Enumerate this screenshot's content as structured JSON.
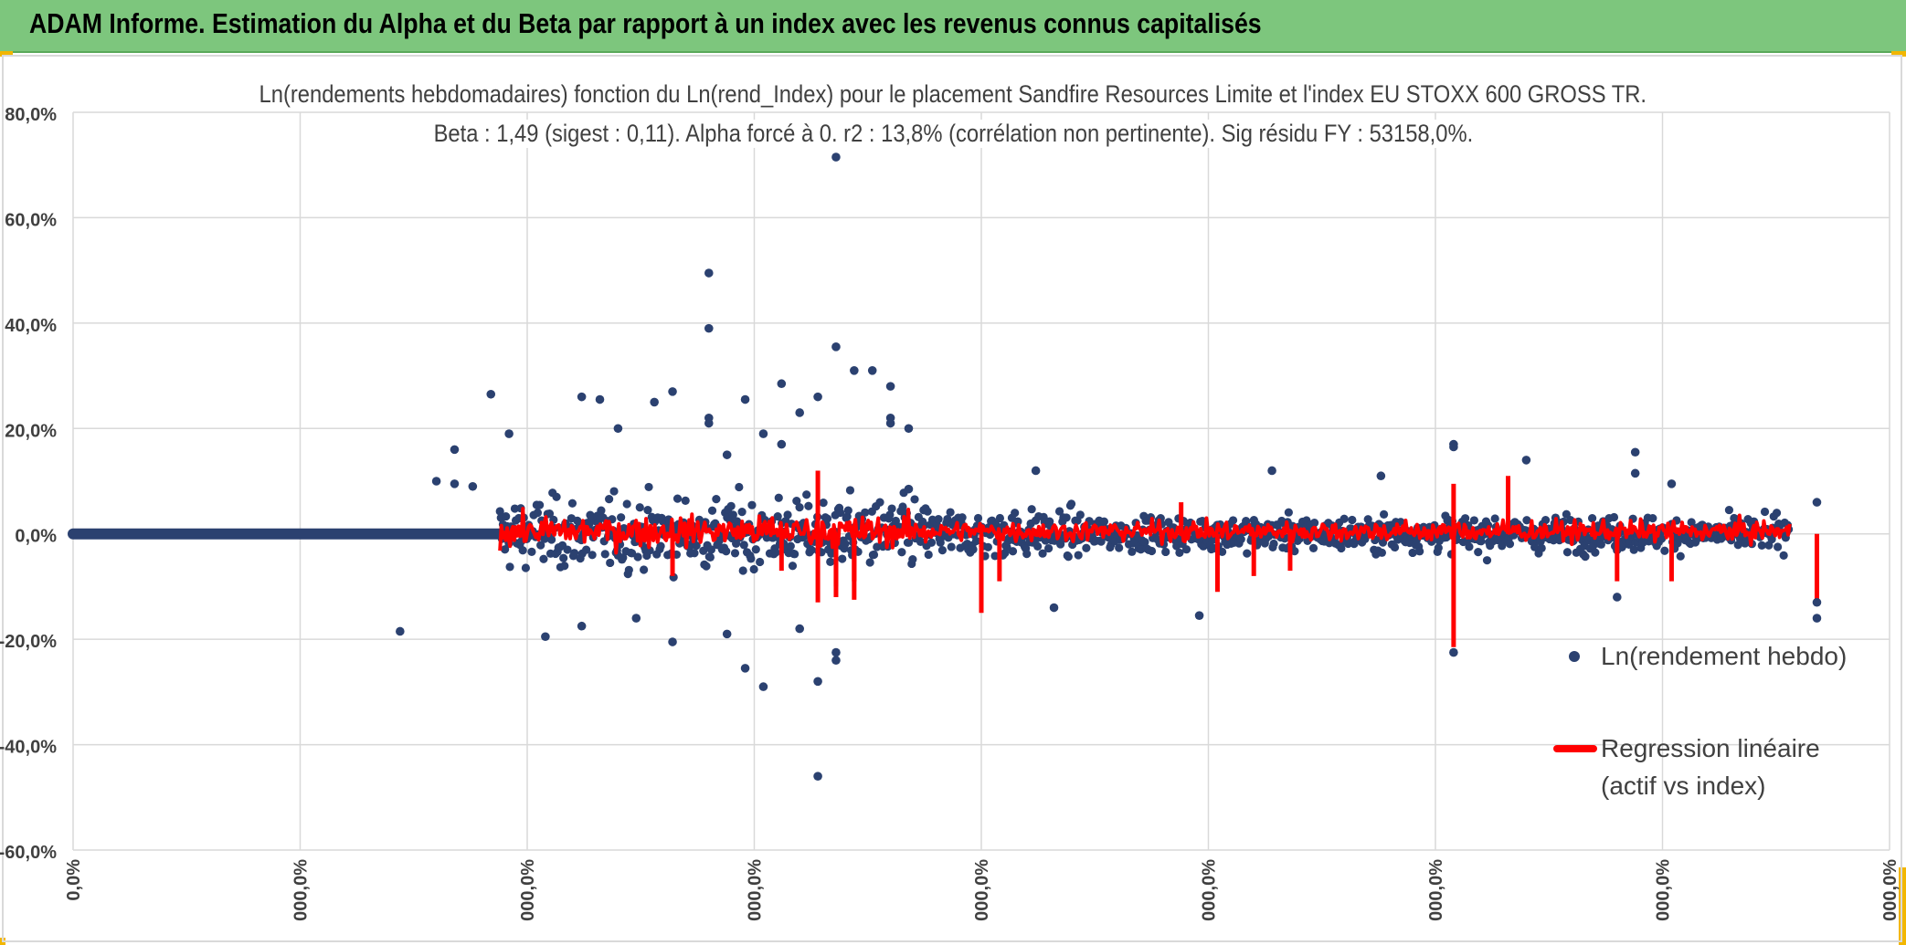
{
  "header": {
    "title": "ADAM Informe. Estimation du Alpha et du Beta par rapport à un index avec les revenus connus capitalisés"
  },
  "colors": {
    "header_bg": "#7dc67d",
    "accent_corner": "#f2b600",
    "scatter": "#2b4170",
    "regression": "#ff0000",
    "grid": "#d9d9d9"
  },
  "chart_data": {
    "type": "scatter",
    "title_line1": "Ln(rendements hebdomadaires) fonction du Ln(rend_Index) pour le placement Sandfire Resources Limite et l'index EU STOXX 600 GROSS TR.",
    "title_line2": "Beta : 1,49 (sigest : 0,11).  Alpha forcé à 0. r2 : 13,8% (corrélation non pertinente). Sig résidu FY : 53158,0%.",
    "y_ticks": [
      "80,0%",
      "60,0%",
      "40,0%",
      "20,0%",
      "0,0%",
      "-20,0%",
      "-40,0%",
      "-60,0%"
    ],
    "y_range": [
      -60,
      80
    ],
    "x_ticks": [
      "0,0%",
      "000,0%",
      "000,0%",
      "000,0%",
      "000,0%",
      "000,0%",
      "000,0%",
      "000,0%",
      "000,0%"
    ],
    "grid": true,
    "legend_position": "right",
    "series": [
      {
        "name": "Ln(rendement hebdo)",
        "kind": "scatter",
        "outliers": [
          [
            0.35,
            49.5
          ],
          [
            0.35,
            39
          ],
          [
            0.39,
            28.5
          ],
          [
            0.33,
            27
          ],
          [
            0.23,
            26.5
          ],
          [
            0.37,
            25.5
          ],
          [
            0.28,
            26
          ],
          [
            0.29,
            25.5
          ],
          [
            0.32,
            25
          ],
          [
            0.42,
            35.5
          ],
          [
            0.43,
            31
          ],
          [
            0.44,
            31
          ],
          [
            0.45,
            28
          ],
          [
            0.45,
            21
          ],
          [
            0.46,
            20
          ],
          [
            0.45,
            22
          ],
          [
            0.41,
            26
          ],
          [
            0.4,
            23
          ],
          [
            0.39,
            17
          ],
          [
            0.35,
            22
          ],
          [
            0.35,
            21
          ],
          [
            0.38,
            19
          ],
          [
            0.36,
            15
          ],
          [
            0.3,
            20
          ],
          [
            0.24,
            19
          ],
          [
            0.42,
            71.5
          ],
          [
            0.41,
            -46
          ],
          [
            0.38,
            -29
          ],
          [
            0.37,
            -25.5
          ],
          [
            0.41,
            -28
          ],
          [
            0.42,
            -22.5
          ],
          [
            0.42,
            -24
          ],
          [
            0.33,
            -20.5
          ],
          [
            0.26,
            -19.5
          ],
          [
            0.18,
            -18.5
          ],
          [
            0.36,
            -19
          ],
          [
            0.4,
            -18
          ],
          [
            0.31,
            -16
          ],
          [
            0.28,
            -17.5
          ],
          [
            0.76,
            17
          ],
          [
            0.76,
            16.5
          ],
          [
            0.76,
            -22.5
          ],
          [
            0.86,
            15.5
          ],
          [
            0.86,
            11.5
          ],
          [
            0.62,
            -15.5
          ],
          [
            0.88,
            9.5
          ],
          [
            0.96,
            6
          ],
          [
            0.96,
            -13
          ],
          [
            0.96,
            -16
          ],
          [
            0.21,
            16
          ],
          [
            0.22,
            9
          ],
          [
            0.8,
            14
          ],
          [
            0.85,
            -12
          ],
          [
            0.54,
            -14
          ],
          [
            0.66,
            12
          ],
          [
            0.72,
            11
          ],
          [
            0.53,
            12
          ],
          [
            0.2,
            10
          ],
          [
            0.21,
            9.5
          ],
          [
            0.46,
            8.5
          ]
        ]
      },
      {
        "name": "Regression linéaire (actif vs index)",
        "kind": "regression",
        "spikes": [
          [
            0.41,
            -13
          ],
          [
            0.41,
            12
          ],
          [
            0.42,
            -12
          ],
          [
            0.43,
            -12.5
          ],
          [
            0.5,
            -15
          ],
          [
            0.51,
            -9
          ],
          [
            0.76,
            -21.5
          ],
          [
            0.76,
            9.5
          ],
          [
            0.79,
            11
          ],
          [
            0.96,
            -13.5
          ],
          [
            0.63,
            -11
          ],
          [
            0.65,
            -8
          ],
          [
            0.67,
            -7
          ],
          [
            0.85,
            -9
          ],
          [
            0.88,
            -9
          ],
          [
            0.61,
            6
          ],
          [
            0.42,
            -10
          ],
          [
            0.43,
            -9
          ],
          [
            0.39,
            -7
          ],
          [
            0.33,
            -8
          ]
        ]
      }
    ],
    "flat_segment": {
      "x_start": 0.0,
      "x_end": 0.235,
      "y": 0
    },
    "legend": [
      {
        "label": "Ln(rendement hebdo)"
      },
      {
        "label_line1": "Regression linéaire",
        "label_line2": "(actif vs index)"
      }
    ]
  }
}
